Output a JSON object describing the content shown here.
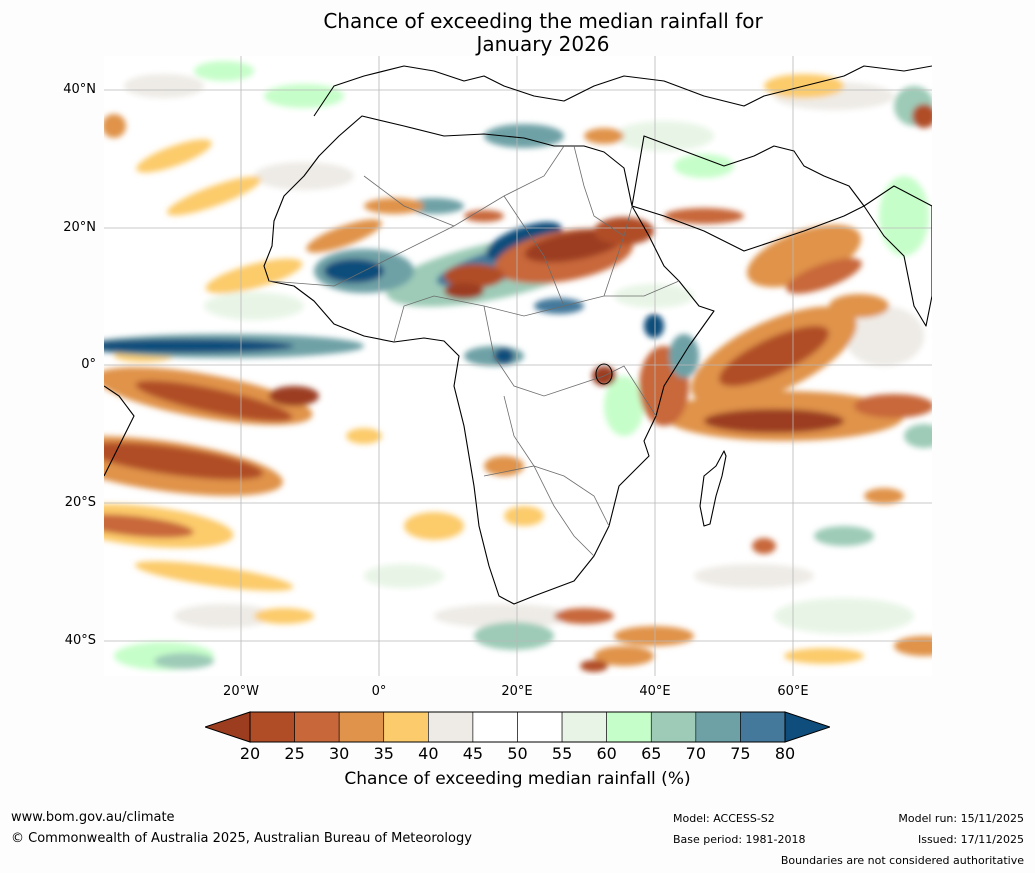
{
  "title": {
    "line1": "Chance of exceeding the median rainfall for",
    "line2": "January 2026"
  },
  "map": {
    "lat_labels": [
      "40°N",
      "20°N",
      "0°",
      "20°S",
      "40°S"
    ],
    "lon_labels": [
      "20°W",
      "0°",
      "20°E",
      "40°E",
      "60°E"
    ]
  },
  "colorbar": {
    "ticks": [
      "20",
      "25",
      "30",
      "35",
      "40",
      "45",
      "50",
      "55",
      "60",
      "65",
      "70",
      "75",
      "80"
    ],
    "colors": [
      "#9c3d20",
      "#b04d27",
      "#c8683a",
      "#e0934a",
      "#fccb6b",
      "#eeebe6",
      "#ffffff",
      "#ffffff",
      "#e8f5e6",
      "#c6fec9",
      "#9dcbb7",
      "#6ea1a6",
      "#45799b",
      "#0f4d7c"
    ],
    "label": "Chance of exceeding median rainfall (%)"
  },
  "footer": {
    "website": "www.bom.gov.au/climate",
    "copyright": "© Commonwealth of Australia 2025, Australian Bureau of Meteorology",
    "model": "Model: ACCESS-S2",
    "base_period": "Base period: 1981-2018",
    "model_run": "Model run: 15/11/2025",
    "issued": "Issued: 17/11/2025",
    "disclaimer": "Boundaries are not considered authoritative"
  }
}
